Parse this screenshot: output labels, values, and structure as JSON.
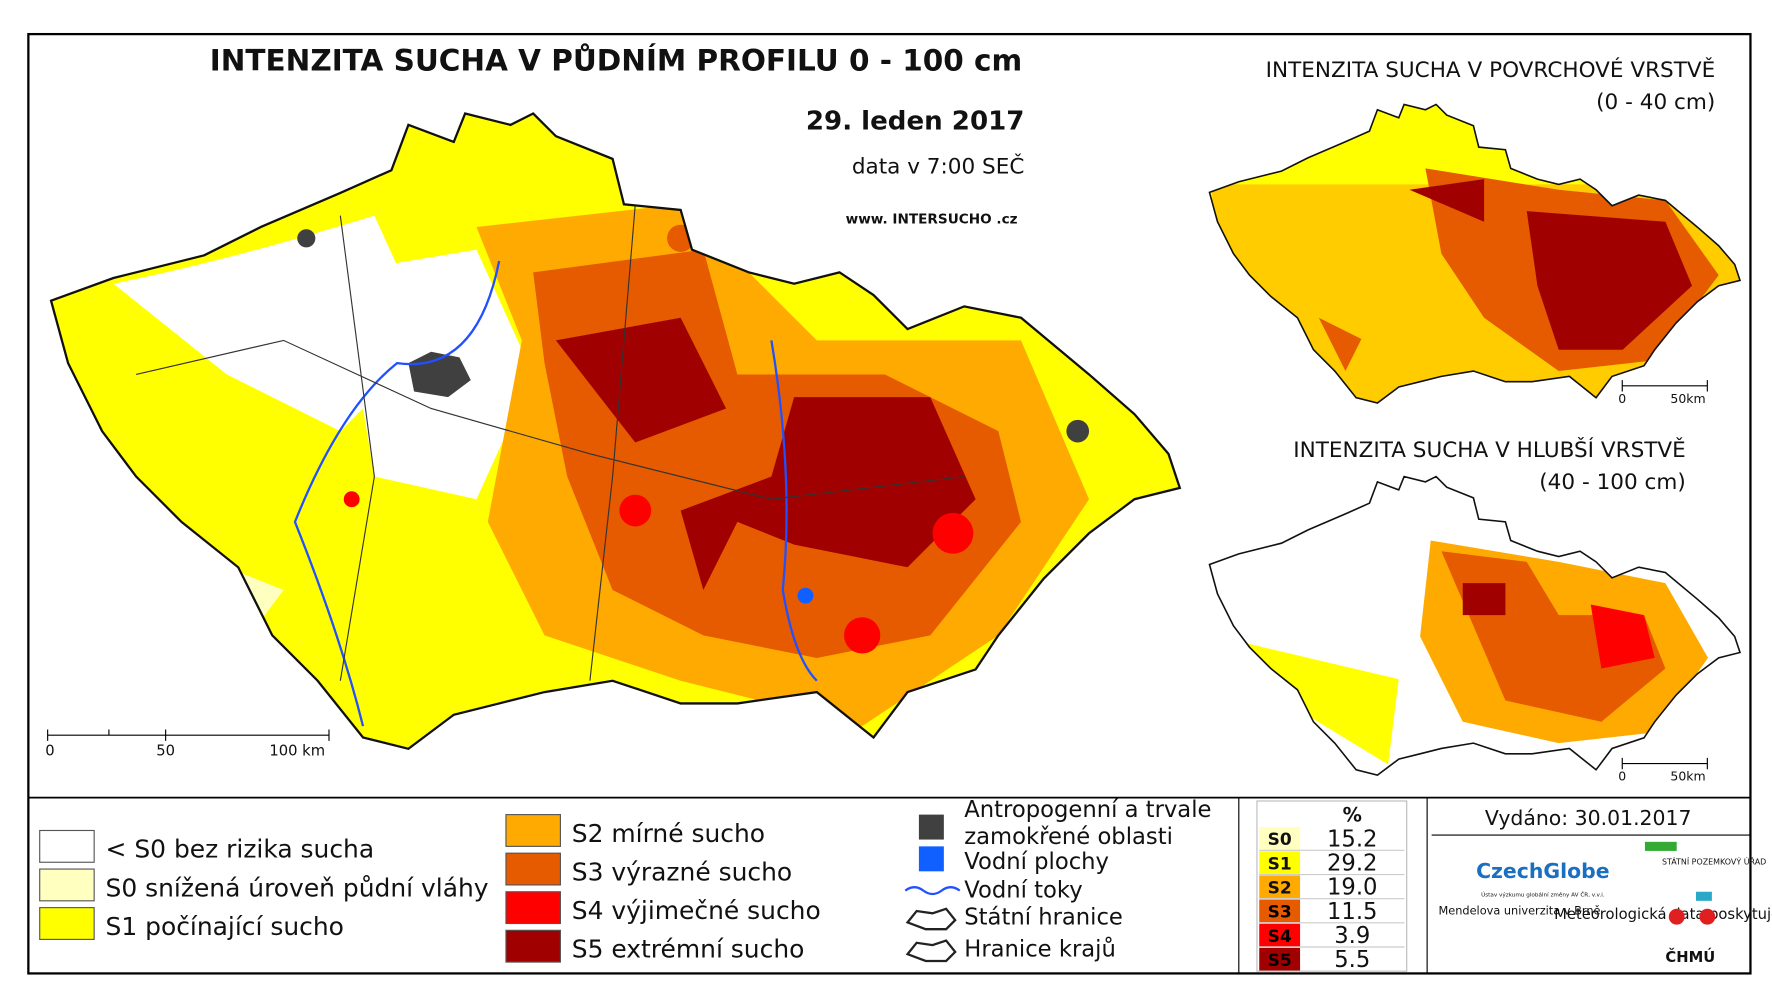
{
  "main_map": {
    "title": "INTENZITA SUCHA V PŮDNÍM PROFILU 0 - 100 cm",
    "date": "29. leden 2017",
    "time": "data v 7:00 SEČ",
    "website": "www. INTERSUCHO .cz",
    "scale": [
      "0",
      "50",
      "100 km"
    ]
  },
  "inset_top": {
    "title": "INTENZITA SUCHA V POVRCHOVÉ VRSTVĚ",
    "subtitle": "(0 - 40 cm)",
    "scale": [
      "0",
      "50km"
    ]
  },
  "inset_bottom": {
    "title": "INTENZITA SUCHA V HLUBŠÍ VRSTVĚ",
    "subtitle": "(40 - 100 cm)",
    "scale": [
      "0",
      "50km"
    ]
  },
  "legend": {
    "drought": [
      {
        "label": "< S0 bez rizika sucha",
        "color": "#ffffff"
      },
      {
        "label": "S0 snížená úroveň půdní vláhy",
        "color": "#ffffc0"
      },
      {
        "label": "S1 počínající sucho",
        "color": "#ffff00"
      },
      {
        "label": "S2 mírné sucho",
        "color": "#ffaa00"
      },
      {
        "label": "S3 výrazné sucho",
        "color": "#e65a00"
      },
      {
        "label": "S4 výjimečné sucho",
        "color": "#ff0000"
      },
      {
        "label": "S5 extrémní sucho",
        "color": "#a00000"
      }
    ],
    "features": [
      {
        "label": "Antropogenní a trvale zamokřené oblasti",
        "color": "#404040"
      },
      {
        "label": "Vodní plochy",
        "color": "#1060ff"
      },
      {
        "label": "Vodní toky",
        "color": "#2050ff"
      },
      {
        "label": "Státní hranice",
        "color": "#222222"
      },
      {
        "label": "Hranice krajů",
        "color": "#222222"
      }
    ]
  },
  "table": {
    "header": "%",
    "rows": [
      [
        "S0",
        "15.2"
      ],
      [
        "S1",
        "29.2"
      ],
      [
        "S2",
        "19.0"
      ],
      [
        "S3",
        "11.5"
      ],
      [
        "S4",
        "3.9"
      ],
      [
        "S5",
        "5.5"
      ]
    ]
  },
  "issued": "Vydáno: 30.01.2017",
  "logos": {
    "czechglobe": "CzechGlobe",
    "czechglobe_sub": "Ústav výzkumu globální změny AV ČR, v.v.i.",
    "spu": "STÁTNÍ POZEMKOVÝ ÚŘAD",
    "mendelu": "Mendelova univerzita v Brně",
    "meteo": "Meteorologická data poskytuje:",
    "chmu": "ČHMÚ"
  }
}
